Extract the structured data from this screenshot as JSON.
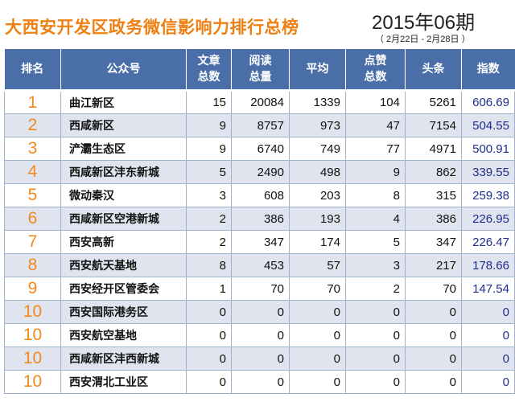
{
  "header": {
    "title": "大西安开发区政务微信影响力排行总榜",
    "period": "2015年06期",
    "date_range": "（ 2月22日 - 2月28日 ）"
  },
  "table": {
    "columns": [
      {
        "line1": "排名",
        "line2": ""
      },
      {
        "line1": "公众号",
        "line2": ""
      },
      {
        "line1": "文章",
        "line2": "总数"
      },
      {
        "line1": "阅读",
        "line2": "总量"
      },
      {
        "line1": "平均",
        "line2": ""
      },
      {
        "line1": "点赞",
        "line2": "总数"
      },
      {
        "line1": "头条",
        "line2": ""
      },
      {
        "line1": "指数",
        "line2": ""
      }
    ],
    "rows": [
      {
        "rank": "1",
        "name": "曲江新区",
        "articles": "15",
        "reads": "20084",
        "avg": "1339",
        "likes": "104",
        "headline": "5261",
        "index": "606.69"
      },
      {
        "rank": "2",
        "name": "西咸新区",
        "articles": "9",
        "reads": "8757",
        "avg": "973",
        "likes": "47",
        "headline": "7154",
        "index": "504.55"
      },
      {
        "rank": "3",
        "name": "浐灞生态区",
        "articles": "9",
        "reads": "6740",
        "avg": "749",
        "likes": "77",
        "headline": "4971",
        "index": "500.91"
      },
      {
        "rank": "4",
        "name": "西咸新区沣东新城",
        "articles": "5",
        "reads": "2490",
        "avg": "498",
        "likes": "9",
        "headline": "862",
        "index": "339.55"
      },
      {
        "rank": "5",
        "name": "微动秦汉",
        "articles": "3",
        "reads": "608",
        "avg": "203",
        "likes": "8",
        "headline": "315",
        "index": "259.38"
      },
      {
        "rank": "6",
        "name": "西咸新区空港新城",
        "articles": "2",
        "reads": "386",
        "avg": "193",
        "likes": "4",
        "headline": "386",
        "index": "226.95"
      },
      {
        "rank": "7",
        "name": "西安高新",
        "articles": "2",
        "reads": "347",
        "avg": "174",
        "likes": "5",
        "headline": "347",
        "index": "226.47"
      },
      {
        "rank": "8",
        "name": "西安航天基地",
        "articles": "8",
        "reads": "453",
        "avg": "57",
        "likes": "3",
        "headline": "217",
        "index": "178.66"
      },
      {
        "rank": "9",
        "name": "西安经开区管委会",
        "articles": "1",
        "reads": "70",
        "avg": "70",
        "likes": "2",
        "headline": "70",
        "index": "147.54"
      },
      {
        "rank": "10",
        "name": "西安国际港务区",
        "articles": "0",
        "reads": "0",
        "avg": "0",
        "likes": "0",
        "headline": "0",
        "index": "0"
      },
      {
        "rank": "10",
        "name": "西安航空基地",
        "articles": "0",
        "reads": "0",
        "avg": "0",
        "likes": "0",
        "headline": "0",
        "index": "0"
      },
      {
        "rank": "10",
        "name": "西咸新区沣西新城",
        "articles": "0",
        "reads": "0",
        "avg": "0",
        "likes": "0",
        "headline": "0",
        "index": "0"
      },
      {
        "rank": "10",
        "name": "西安渭北工业区",
        "articles": "0",
        "reads": "0",
        "avg": "0",
        "likes": "0",
        "headline": "0",
        "index": "0"
      }
    ]
  },
  "colors": {
    "title": "#ee7f12",
    "header_bg": "#4a6fa8",
    "rank": "#f08a1b",
    "index": "#1f2d8a",
    "row_alt": "#dfe4ee"
  }
}
